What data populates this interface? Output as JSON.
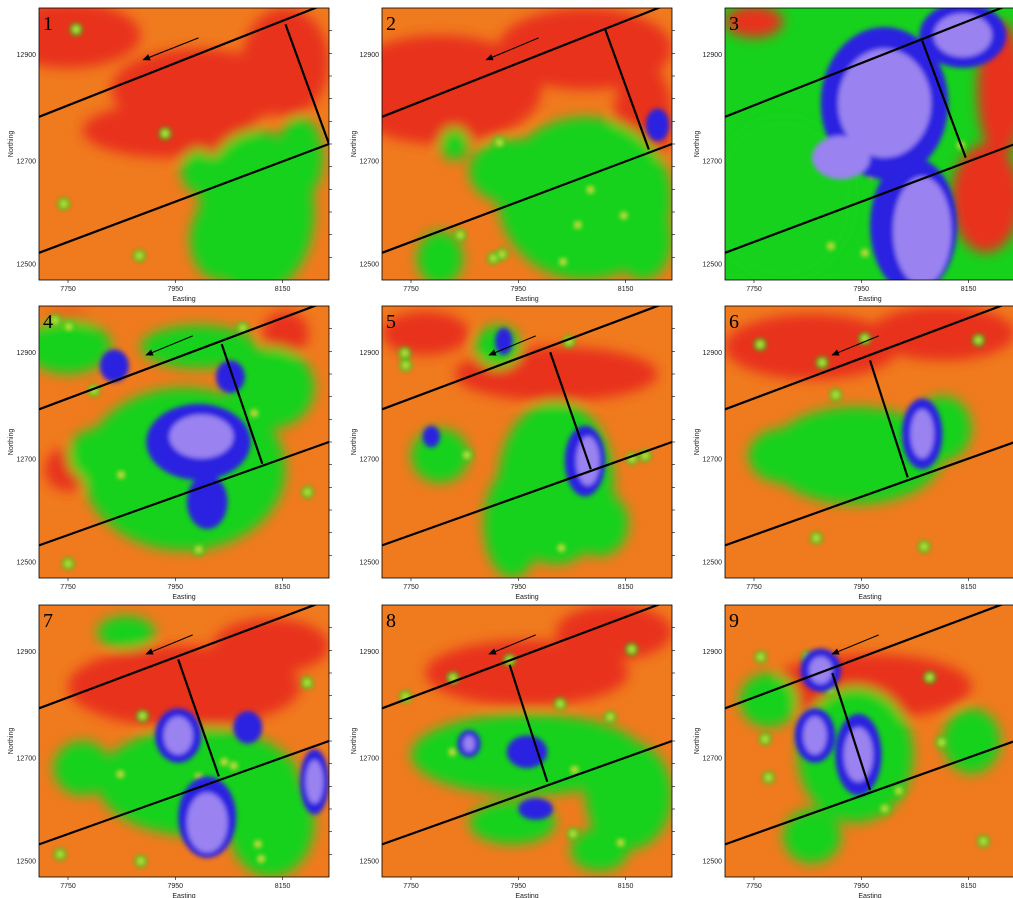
{
  "figure": {
    "panels": [
      {
        "number": "1",
        "variant": 1
      },
      {
        "number": "2",
        "variant": 2
      },
      {
        "number": "3",
        "variant": 3
      },
      {
        "number": "4",
        "variant": 4
      },
      {
        "number": "5",
        "variant": 5
      },
      {
        "number": "6",
        "variant": 6
      },
      {
        "number": "7",
        "variant": 7
      },
      {
        "number": "8",
        "variant": 8
      },
      {
        "number": "9",
        "variant": 9
      }
    ],
    "x_axis_label": "Easting",
    "y_axis_label": "Northing",
    "x_ticks": [
      "7750",
      "7950",
      "8150"
    ],
    "y_ticks": [
      "12900",
      "12700",
      "12500"
    ],
    "colors": {
      "high": "#e8331a",
      "mid_high": "#f07a1e",
      "mid": "#17d21c",
      "low": "#2b24e0",
      "lowest": "#9a82f0",
      "lines": "#000000"
    }
  }
}
